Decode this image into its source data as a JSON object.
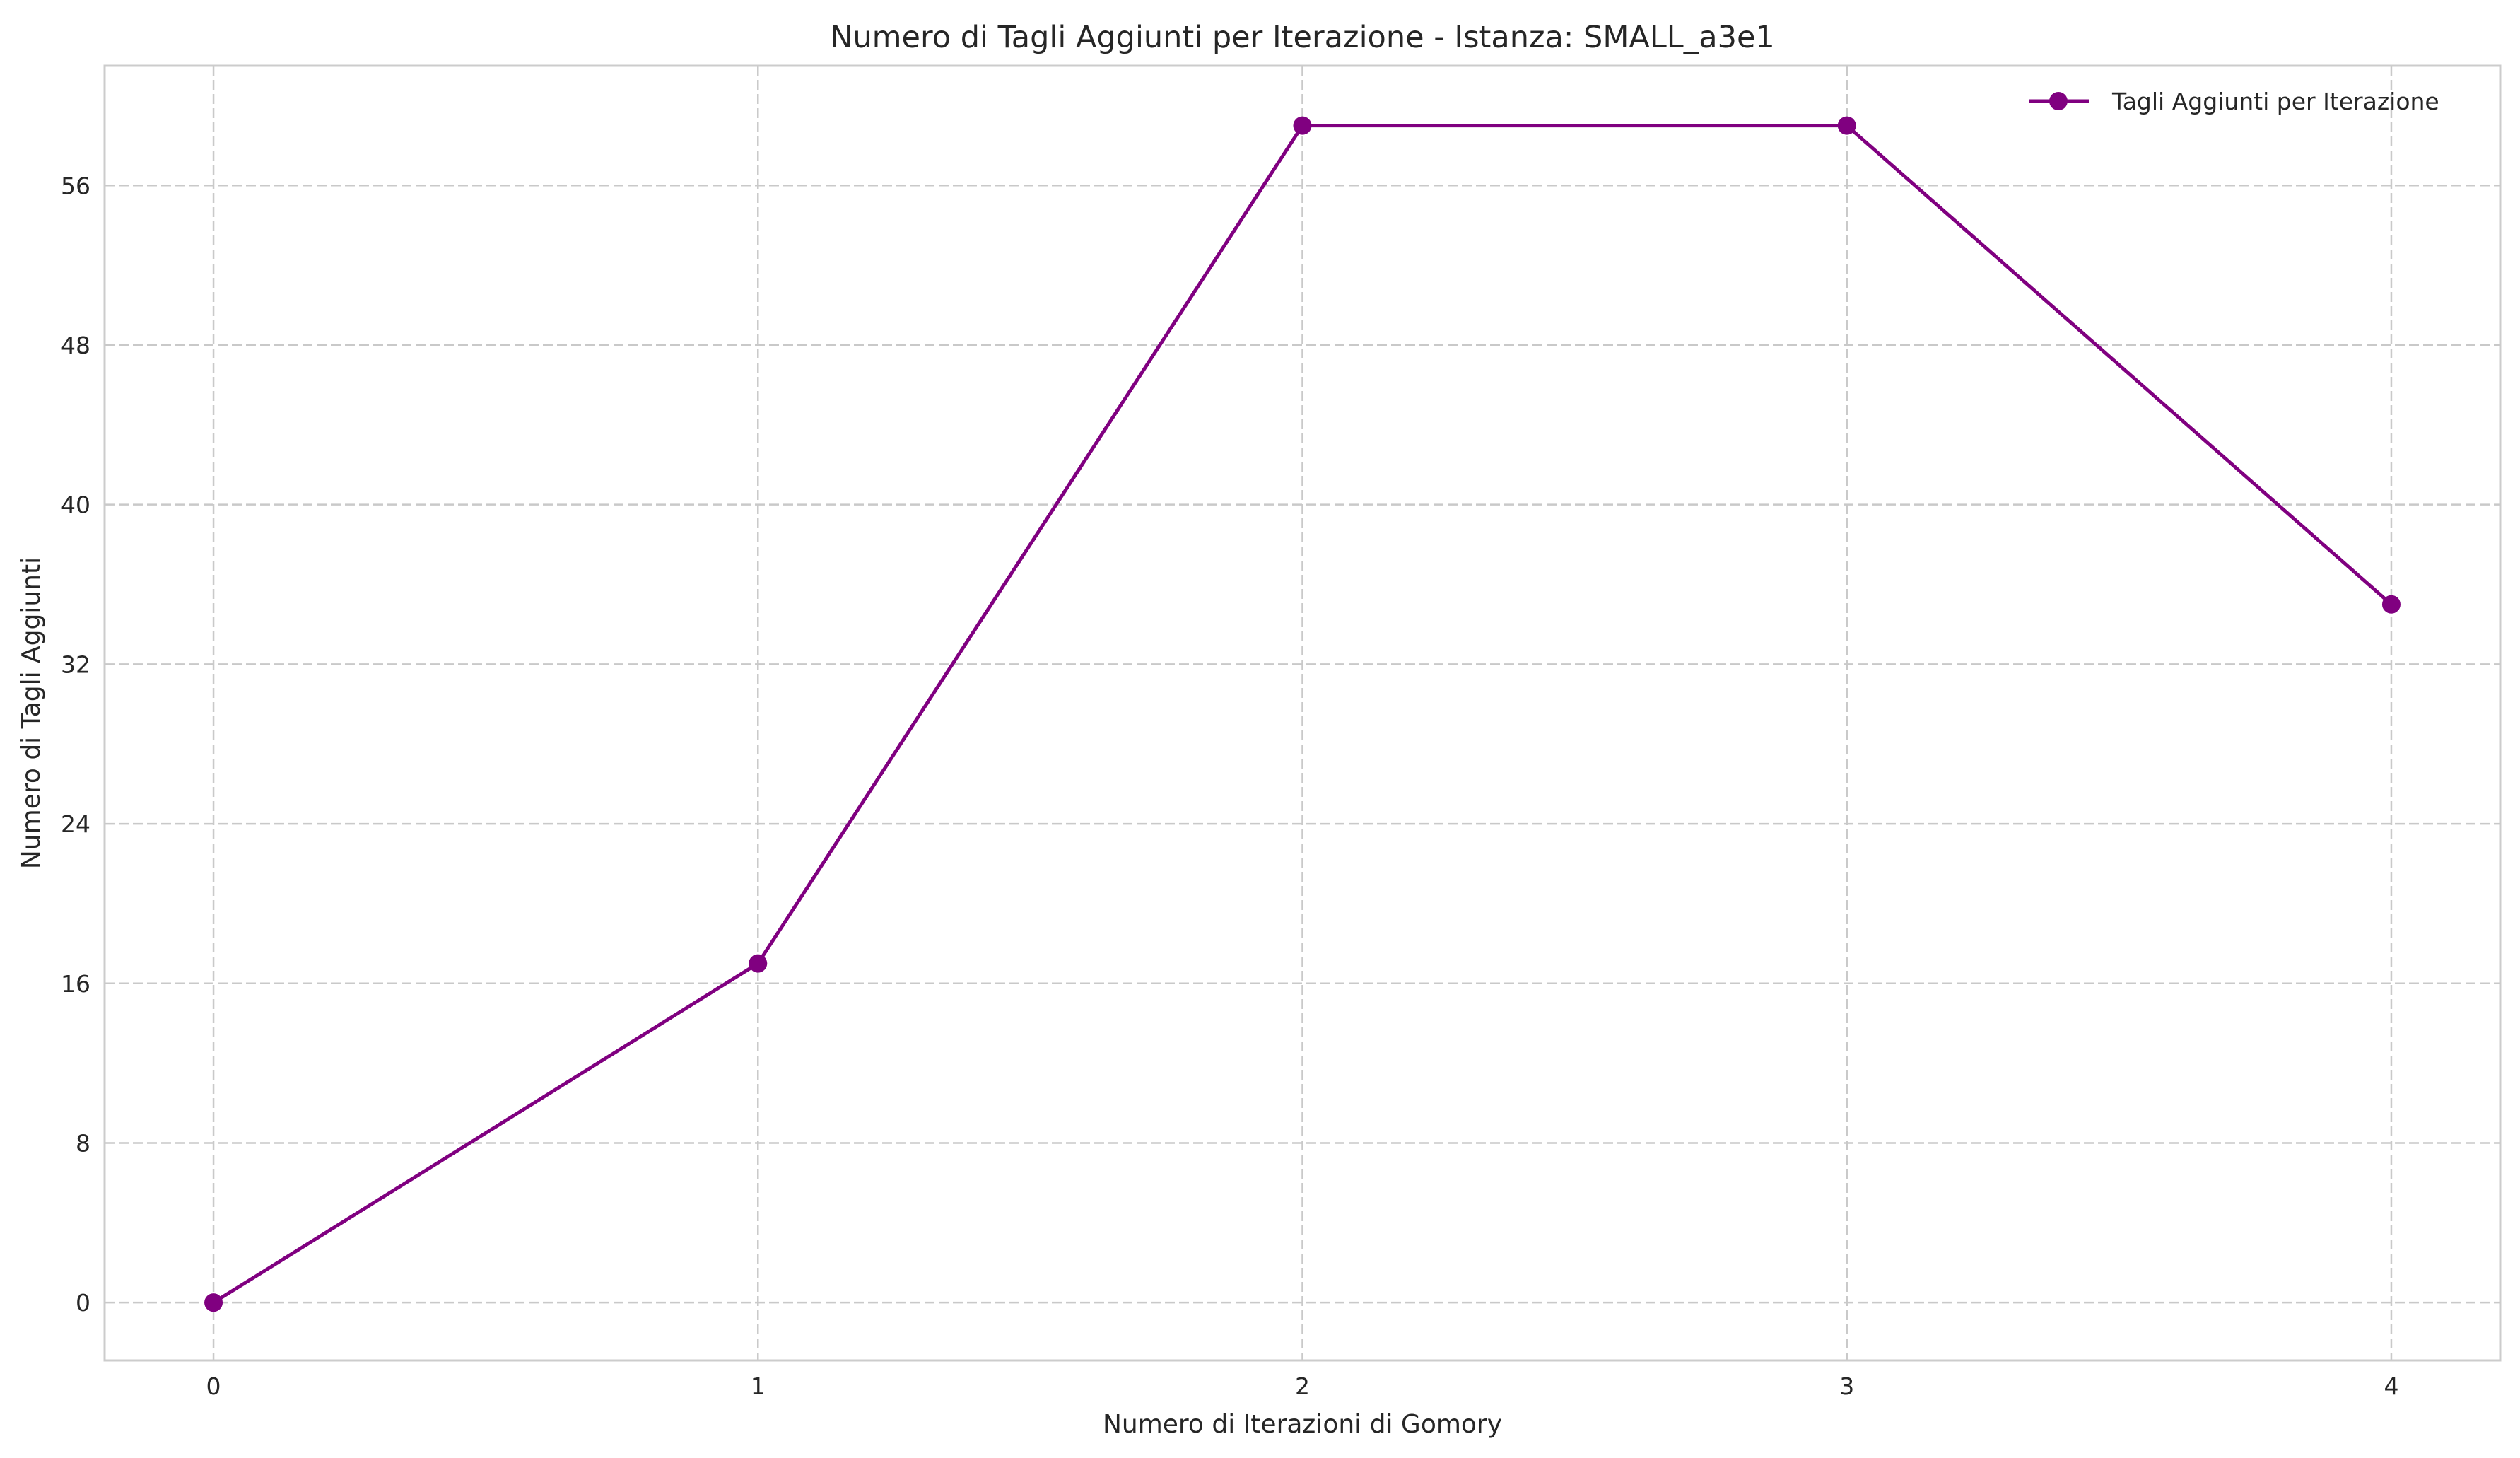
{
  "chart_data": {
    "type": "line",
    "title": "Numero di Tagli Aggiunti per Iterazione - Istanza: SMALL_a3e1",
    "xlabel": "Numero di Iterazioni di Gomory",
    "ylabel": "Numero di Tagli Aggiunti",
    "x": [
      0,
      1,
      2,
      3,
      4
    ],
    "xlim": [
      -0.2,
      4.2
    ],
    "ylim": [
      -2.9,
      62.0
    ],
    "xticks": [
      0,
      1,
      2,
      3,
      4
    ],
    "xtick_labels": [
      "0",
      "1",
      "2",
      "3",
      "4"
    ],
    "yticks": [
      0,
      8,
      16,
      24,
      32,
      40,
      48,
      56
    ],
    "ytick_labels": [
      "0",
      "8",
      "16",
      "24",
      "32",
      "40",
      "48",
      "56"
    ],
    "grid": true,
    "legend_position": "top-right",
    "series": [
      {
        "name": "Tagli Aggiunti per Iterazione",
        "values": [
          0,
          17,
          59,
          59,
          35
        ],
        "color": "#800080",
        "marker": "circle"
      }
    ]
  }
}
